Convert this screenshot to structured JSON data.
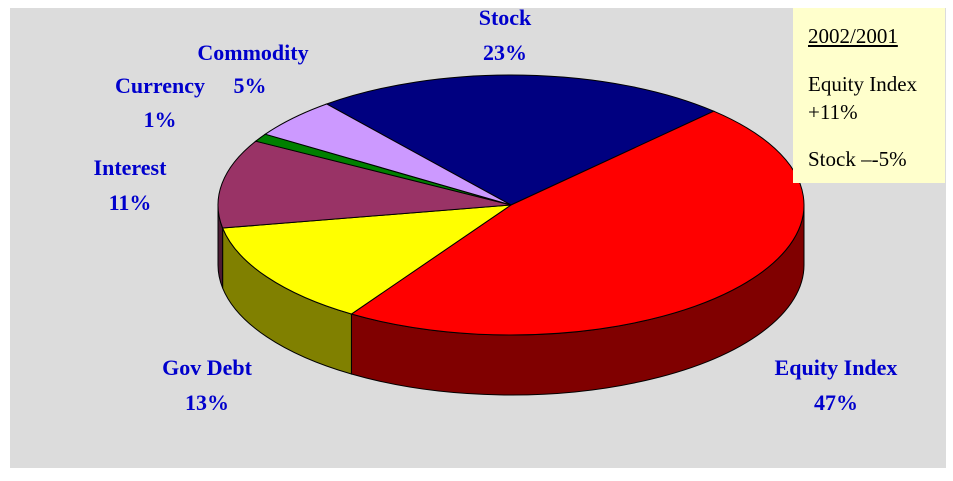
{
  "chart_data": {
    "type": "pie3d",
    "categories": [
      "Stock",
      "Equity Index",
      "Gov Debt",
      "Interest",
      "Currency",
      "Commodity"
    ],
    "values": [
      23,
      47,
      13,
      11,
      1,
      5
    ],
    "value_labels": [
      "23%",
      "47%",
      "13%",
      "11%",
      "1%",
      "5%"
    ],
    "colors": [
      "#000080",
      "#ff0000",
      "#ffff00",
      "#993366",
      "#008000",
      "#cc99ff"
    ],
    "annotation": {
      "title": "2002/2001",
      "lines": [
        "Equity Index +11%",
        "Stock –-5%"
      ]
    }
  }
}
